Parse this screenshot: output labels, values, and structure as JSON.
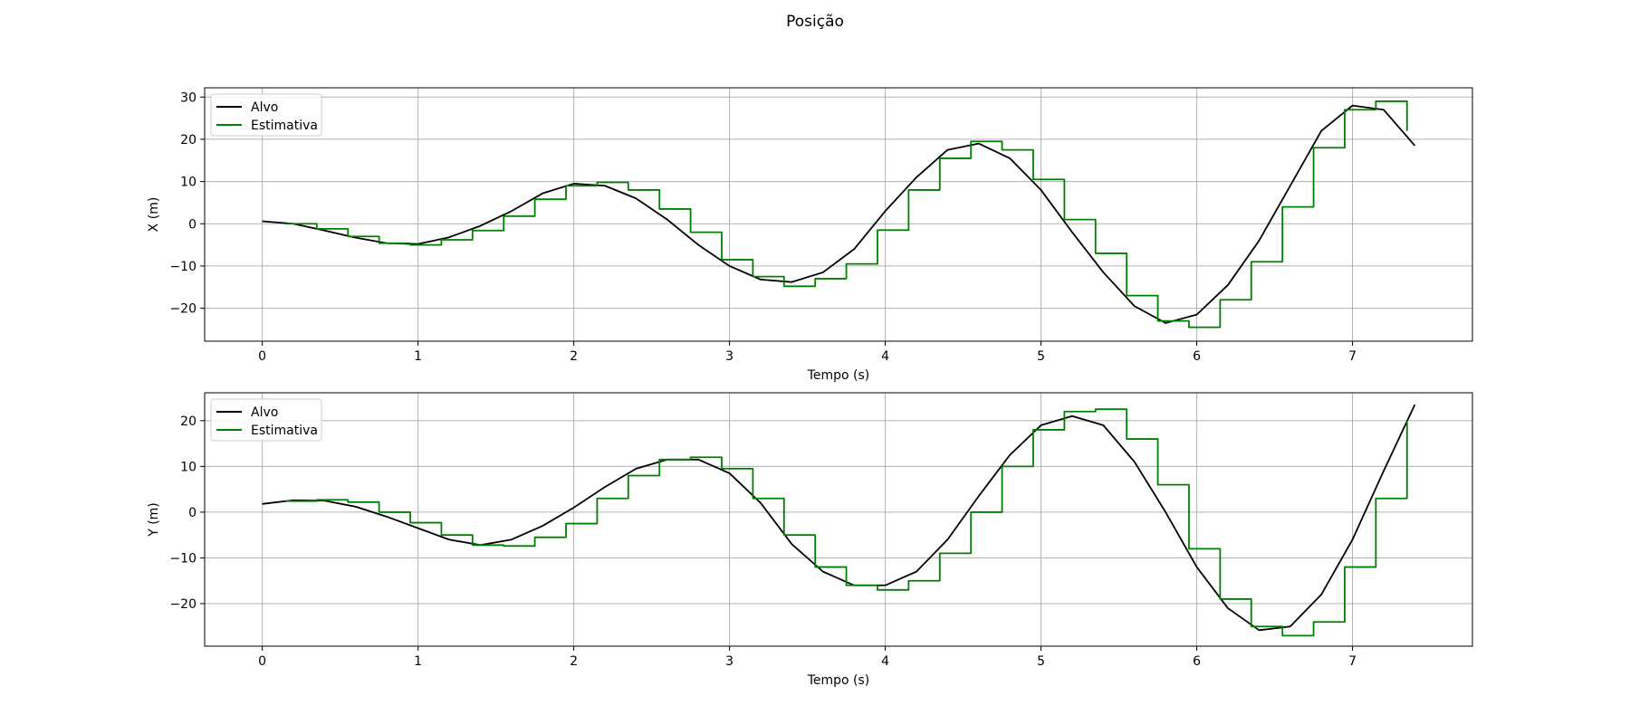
{
  "figure": {
    "title": "Posição"
  },
  "colors": {
    "target": "#000000",
    "estimate": "#008000",
    "grid": "#b0b0b0",
    "frame": "#000000",
    "legend_border": "#cccccc"
  },
  "chart_data": [
    {
      "type": "line",
      "xlabel": "Tempo (s)",
      "ylabel": "X (m)",
      "xlim": [
        -0.37,
        7.77
      ],
      "ylim": [
        -27.8,
        32.2
      ],
      "xticks": [
        0,
        1,
        2,
        3,
        4,
        5,
        6,
        7
      ],
      "yticks": [
        -20,
        -10,
        0,
        10,
        20,
        30
      ],
      "grid": true,
      "legend": {
        "position": "top-left",
        "entries": [
          "Alvo",
          "Estimativa"
        ]
      },
      "series": [
        {
          "name": "Alvo",
          "color": "#000000",
          "x": [
            0,
            0.2,
            0.4,
            0.6,
            0.8,
            1.0,
            1.2,
            1.4,
            1.6,
            1.8,
            2.0,
            2.2,
            2.4,
            2.6,
            2.8,
            3.0,
            3.2,
            3.4,
            3.6,
            3.8,
            4.0,
            4.2,
            4.4,
            4.6,
            4.8,
            5.0,
            5.2,
            5.4,
            5.6,
            5.8,
            6.0,
            6.2,
            6.4,
            6.6,
            6.8,
            7.0,
            7.2,
            7.4
          ],
          "values": [
            0.6,
            0,
            -1.6,
            -3.3,
            -4.6,
            -4.8,
            -3.2,
            -0.5,
            3.0,
            7.2,
            9.5,
            9.0,
            6.0,
            1.0,
            -5.0,
            -10.0,
            -13.2,
            -13.8,
            -11.5,
            -6.0,
            3.0,
            11.0,
            17.5,
            19.0,
            15.5,
            8.0,
            -2.0,
            -11.5,
            -19.5,
            -23.5,
            -21.5,
            -14.5,
            -4.0,
            9.0,
            22.0,
            28.0,
            27.0,
            18.5
          ]
        },
        {
          "name": "Estimativa",
          "color": "#008000",
          "x": [
            0.15,
            0.35,
            0.55,
            0.75,
            0.95,
            1.15,
            1.35,
            1.55,
            1.75,
            1.95,
            2.15,
            2.35,
            2.55,
            2.75,
            2.95,
            3.15,
            3.35,
            3.55,
            3.75,
            3.95,
            4.15,
            4.35,
            4.55,
            4.75,
            4.95,
            5.15,
            5.35,
            5.55,
            5.75,
            5.95,
            6.15,
            6.35,
            6.55,
            6.75,
            6.95,
            7.15,
            7.35
          ],
          "values": [
            0,
            -1.2,
            -3.0,
            -4.6,
            -5.0,
            -3.8,
            -1.6,
            1.8,
            5.8,
            9.0,
            9.8,
            8.0,
            3.5,
            -2.0,
            -8.5,
            -12.5,
            -14.8,
            -13.0,
            -9.5,
            -1.5,
            8.0,
            15.5,
            19.5,
            17.5,
            10.5,
            1.0,
            -7.0,
            -17.0,
            -23.0,
            -24.5,
            -18.0,
            -9.0,
            4.0,
            18.0,
            27.0,
            29.0,
            22.0
          ]
        }
      ]
    },
    {
      "type": "line",
      "xlabel": "Tempo (s)",
      "ylabel": "Y (m)",
      "xlim": [
        -0.37,
        7.77
      ],
      "ylim": [
        -29.3,
        26.1
      ],
      "xticks": [
        0,
        1,
        2,
        3,
        4,
        5,
        6,
        7
      ],
      "yticks": [
        -20,
        -10,
        0,
        10,
        20
      ],
      "grid": true,
      "legend": {
        "position": "top-left",
        "entries": [
          "Alvo",
          "Estimativa"
        ]
      },
      "series": [
        {
          "name": "Alvo",
          "color": "#000000",
          "x": [
            0,
            0.2,
            0.4,
            0.6,
            0.8,
            1.0,
            1.2,
            1.4,
            1.6,
            1.8,
            2.0,
            2.2,
            2.4,
            2.6,
            2.8,
            3.0,
            3.2,
            3.4,
            3.6,
            3.8,
            4.0,
            4.2,
            4.4,
            4.6,
            4.8,
            5.0,
            5.2,
            5.4,
            5.6,
            5.8,
            6.0,
            6.2,
            6.4,
            6.6,
            6.8,
            7.0,
            7.2,
            7.4
          ],
          "values": [
            1.8,
            2.6,
            2.5,
            1.2,
            -1.0,
            -3.5,
            -6.0,
            -7.2,
            -6.0,
            -3.0,
            1.0,
            5.5,
            9.5,
            11.5,
            11.5,
            8.5,
            2.0,
            -7.0,
            -13.0,
            -16.0,
            -16.0,
            -13.0,
            -6.0,
            3.5,
            12.5,
            19.0,
            21.0,
            19.0,
            11.0,
            0,
            -12.0,
            -21.0,
            -25.8,
            -25.0,
            -18.0,
            -6.0,
            9.0,
            23.5
          ]
        },
        {
          "name": "Estimativa",
          "color": "#008000",
          "x": [
            0.15,
            0.35,
            0.55,
            0.75,
            0.95,
            1.15,
            1.35,
            1.55,
            1.75,
            1.95,
            2.15,
            2.35,
            2.55,
            2.75,
            2.95,
            3.15,
            3.35,
            3.55,
            3.75,
            3.95,
            4.15,
            4.35,
            4.55,
            4.75,
            4.95,
            5.15,
            5.35,
            5.55,
            5.75,
            5.95,
            6.15,
            6.35,
            6.55,
            6.75,
            6.95,
            7.15,
            7.35
          ],
          "values": [
            2.4,
            2.7,
            2.2,
            0,
            -2.3,
            -5.0,
            -7.2,
            -7.4,
            -5.5,
            -2.5,
            3.0,
            8.0,
            11.5,
            12.0,
            9.5,
            3.0,
            -5.0,
            -12.0,
            -16.0,
            -17.0,
            -15.0,
            -9.0,
            0,
            10.0,
            18.0,
            22.0,
            22.5,
            16.0,
            6.0,
            -8.0,
            -19.0,
            -25.0,
            -27.0,
            -24.0,
            -12.0,
            3.0,
            20.0
          ]
        }
      ]
    }
  ]
}
